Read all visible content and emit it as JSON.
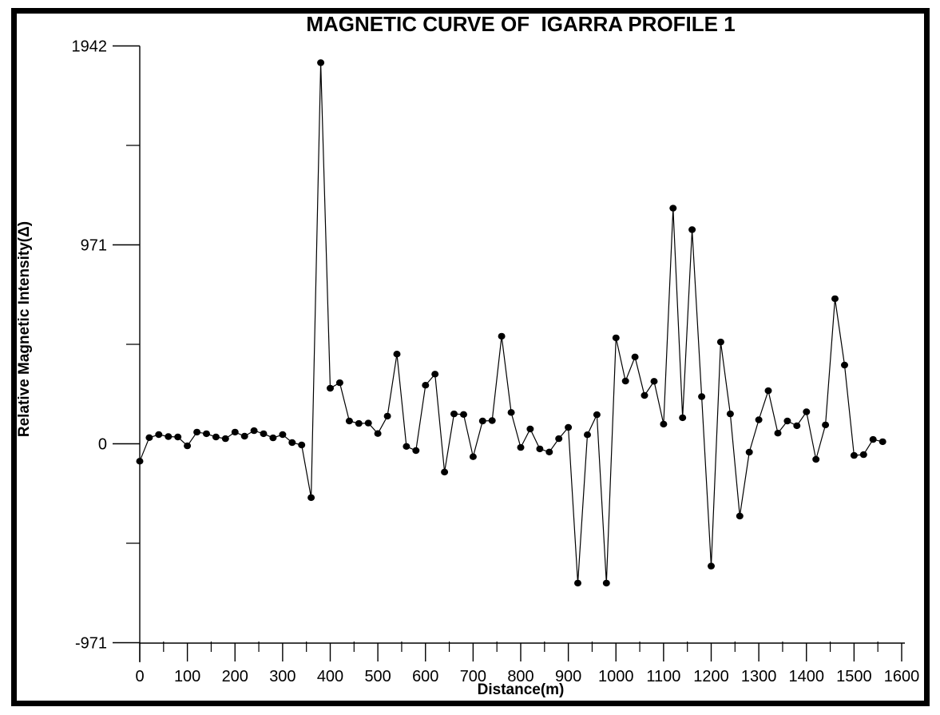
{
  "figure": {
    "background_color": "#ffffff",
    "border_color": "#000000",
    "line_color": "#000000",
    "marker_color": "#000000"
  },
  "chart_data": {
    "type": "line",
    "title": "MAGNETIC CURVE OF  IGARRA PROFILE 1",
    "xlabel": "Distance(m)",
    "ylabel": "Relative Magnetic Intensity(Δ)",
    "grid": false,
    "legend": "none",
    "x_axis": {
      "min": 0,
      "max": 1600,
      "major_tick_step": 100,
      "minor_tick_step": 50,
      "tick_labels": [
        "0",
        "100",
        "200",
        "300",
        "400",
        "500",
        "600",
        "700",
        "800",
        "900",
        "1000",
        "1100",
        "1200",
        "1300",
        "1400",
        "1500",
        "1600"
      ]
    },
    "y_axis": {
      "min": -971,
      "max": 1942,
      "tick_labels": [
        "1942",
        "971",
        "0",
        "-971"
      ],
      "major_ticks": [
        1942,
        971,
        0,
        -971
      ],
      "minor_ticks": [
        1456.5,
        485.5,
        -485.5
      ]
    },
    "series": [
      {
        "name": "relative-magnetic-intensity",
        "marker": "filled-circle",
        "x": [
          0,
          20,
          40,
          60,
          80,
          100,
          120,
          140,
          160,
          180,
          200,
          220,
          240,
          260,
          280,
          300,
          320,
          340,
          360,
          380,
          400,
          420,
          440,
          460,
          480,
          500,
          520,
          540,
          560,
          580,
          600,
          620,
          640,
          660,
          680,
          700,
          720,
          740,
          760,
          780,
          800,
          820,
          840,
          860,
          880,
          900,
          920,
          940,
          960,
          980,
          1000,
          1020,
          1040,
          1060,
          1080,
          1100,
          1120,
          1140,
          1160,
          1180,
          1200,
          1220,
          1240,
          1260,
          1280,
          1300,
          1320,
          1340,
          1360,
          1380,
          1400,
          1420,
          1440,
          1460,
          1480,
          1500,
          1520,
          1540,
          1560
        ],
        "y": [
          -85,
          30,
          45,
          35,
          33,
          -10,
          57,
          49,
          33,
          25,
          57,
          37,
          64,
          49,
          29,
          45,
          6,
          -6,
          -263,
          1860,
          271,
          298,
          111,
          99,
          101,
          50,
          135,
          438,
          -13,
          -33,
          286,
          340,
          -138,
          146,
          143,
          -63,
          111,
          113,
          525,
          153,
          -18,
          72,
          -25,
          -40,
          25,
          80,
          -680,
          44,
          142,
          -680,
          517,
          306,
          424,
          236,
          305,
          96,
          1150,
          127,
          1045,
          230,
          -597,
          497,
          146,
          -353,
          -41,
          117,
          259,
          52,
          111,
          88,
          156,
          -76,
          92,
          708,
          384,
          -57,
          -53,
          21,
          10
        ]
      }
    ]
  }
}
